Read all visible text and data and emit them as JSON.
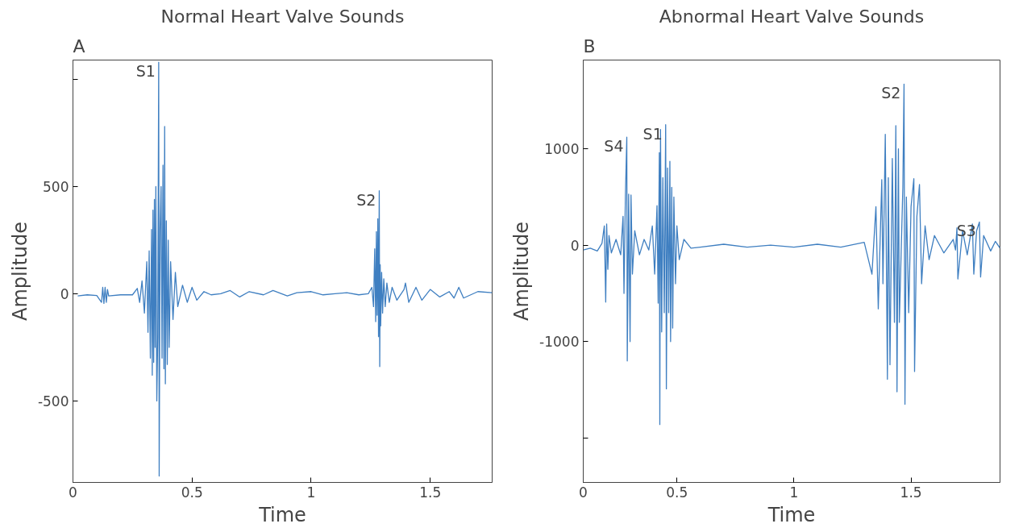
{
  "chart_data": [
    {
      "type": "line",
      "title": "Normal Heart Valve Sounds",
      "xlabel": "Time",
      "ylabel": "Amplitude",
      "annotations": [
        "A",
        {
          "text": "S1",
          "x": 0.36,
          "y": 1080
        },
        {
          "text": "S2",
          "x": 1.286,
          "y": 480
        }
      ],
      "xlim": [
        0,
        1.76
      ],
      "ylim": [
        -880,
        1090
      ],
      "xticks": [
        0,
        0.5,
        1,
        1.5
      ],
      "yticks": [
        -500,
        0,
        500,
        {
          "value": 1000,
          "label": null
        }
      ],
      "grid": false,
      "series": [
        {
          "color": "#3f7fc1",
          "x": [
            0.02,
            0.06,
            0.1,
            0.12,
            0.125,
            0.13,
            0.135,
            0.14,
            0.145,
            0.15,
            0.2,
            0.25,
            0.27,
            0.28,
            0.29,
            0.3,
            0.31,
            0.315,
            0.32,
            0.325,
            0.33,
            0.333,
            0.336,
            0.339,
            0.342,
            0.345,
            0.348,
            0.352,
            0.356,
            0.36,
            0.362,
            0.366,
            0.37,
            0.374,
            0.378,
            0.382,
            0.385,
            0.388,
            0.392,
            0.396,
            0.4,
            0.404,
            0.41,
            0.42,
            0.43,
            0.44,
            0.46,
            0.48,
            0.5,
            0.52,
            0.55,
            0.58,
            0.62,
            0.66,
            0.7,
            0.74,
            0.8,
            0.84,
            0.9,
            0.94,
            1.0,
            1.05,
            1.1,
            1.15,
            1.2,
            1.24,
            1.255,
            1.262,
            1.267,
            1.271,
            1.274,
            1.277,
            1.28,
            1.283,
            1.286,
            1.288,
            1.29,
            1.292,
            1.296,
            1.3,
            1.305,
            1.311,
            1.318,
            1.328,
            1.34,
            1.36,
            1.39,
            1.396,
            1.41,
            1.44,
            1.465,
            1.5,
            1.54,
            1.58,
            1.6,
            1.62,
            1.64,
            1.7,
            1.76
          ],
          "values": [
            -10,
            -5,
            -8,
            -40,
            30,
            -45,
            30,
            -40,
            20,
            -10,
            -5,
            -5,
            25,
            -40,
            60,
            -90,
            150,
            -180,
            200,
            -300,
            300,
            -380,
            390,
            -320,
            440,
            -250,
            500,
            -500,
            -200,
            1080,
            -850,
            300,
            500,
            -300,
            600,
            -350,
            780,
            -420,
            340,
            -330,
            250,
            -250,
            150,
            -120,
            100,
            -60,
            40,
            -40,
            30,
            -30,
            10,
            -5,
            0,
            15,
            -15,
            10,
            -5,
            15,
            -10,
            5,
            10,
            -5,
            0,
            5,
            -5,
            0,
            30,
            -60,
            210,
            -130,
            290,
            -100,
            350,
            -200,
            480,
            -340,
            135,
            -150,
            100,
            -90,
            70,
            -60,
            50,
            -40,
            30,
            -30,
            20,
            50,
            -40,
            30,
            -30,
            20,
            -15,
            10,
            -20,
            30,
            -20,
            10,
            5
          ]
        }
      ]
    },
    {
      "type": "line",
      "title": "Abnormal Heart Valve Sounds",
      "xlabel": "Time",
      "ylabel": "Amplitude",
      "annotations": [
        "B",
        {
          "text": "S4",
          "x": 0.286,
          "y": 1120
        },
        {
          "text": "S1",
          "x": 0.452,
          "y": 1250
        },
        {
          "text": "S2",
          "x": 1.47,
          "y": 1670
        },
        {
          "text": "S3",
          "x": 1.792,
          "y": 240
        }
      ],
      "xlim": [
        0.1,
        1.88
      ],
      "ylim": [
        -2460,
        1920
      ],
      "xticks": [
        {
          "value": 0.1,
          "label": "0"
        },
        0.5,
        1,
        1.5
      ],
      "yticks": [
        {
          "value": -2000,
          "label": null
        },
        -1000,
        0,
        1000
      ],
      "grid": false,
      "series": [
        {
          "color": "#3f7fc1",
          "x": [
            0.1,
            0.13,
            0.16,
            0.18,
            0.19,
            0.196,
            0.2,
            0.205,
            0.21,
            0.22,
            0.24,
            0.26,
            0.27,
            0.274,
            0.28,
            0.286,
            0.288,
            0.294,
            0.3,
            0.304,
            0.31,
            0.32,
            0.34,
            0.36,
            0.38,
            0.395,
            0.405,
            0.415,
            0.42,
            0.425,
            0.427,
            0.43,
            0.435,
            0.44,
            0.446,
            0.452,
            0.455,
            0.46,
            0.465,
            0.47,
            0.473,
            0.478,
            0.482,
            0.487,
            0.494,
            0.5,
            0.51,
            0.53,
            0.56,
            0.6,
            0.7,
            0.8,
            0.9,
            1.0,
            1.1,
            1.2,
            1.3,
            1.333,
            1.35,
            1.36,
            1.375,
            1.38,
            1.39,
            1.399,
            1.403,
            1.41,
            1.42,
            1.429,
            1.435,
            1.44,
            1.446,
            1.45,
            1.465,
            1.47,
            1.474,
            1.48,
            1.49,
            1.5,
            1.512,
            1.515,
            1.525,
            1.536,
            1.545,
            1.56,
            1.577,
            1.6,
            1.64,
            1.68,
            1.69,
            1.696,
            1.7,
            1.72,
            1.74,
            1.762,
            1.768,
            1.78,
            1.792,
            1.797,
            1.81,
            1.84,
            1.86,
            1.88
          ],
          "values": [
            -50,
            -30,
            -60,
            20,
            200,
            -590,
            220,
            -250,
            100,
            -80,
            60,
            -100,
            300,
            -500,
            500,
            1120,
            -1200,
            530,
            -1000,
            520,
            -300,
            150,
            -100,
            60,
            -50,
            200,
            -300,
            410,
            -600,
            960,
            -1860,
            1200,
            -900,
            700,
            -700,
            1250,
            -1490,
            800,
            -700,
            870,
            -1000,
            600,
            -860,
            500,
            -400,
            200,
            -150,
            60,
            -30,
            -20,
            10,
            -20,
            0,
            -20,
            10,
            -20,
            30,
            -300,
            400,
            -660,
            680,
            -400,
            1150,
            -1390,
            700,
            -1240,
            900,
            -800,
            1240,
            -1520,
            1000,
            -800,
            600,
            1670,
            -1650,
            500,
            -700,
            400,
            690,
            -1310,
            300,
            630,
            -400,
            200,
            -150,
            100,
            -80,
            60,
            -50,
            180,
            -350,
            150,
            -100,
            220,
            -300,
            150,
            240,
            -330,
            100,
            -60,
            40,
            -30
          ]
        }
      ]
    }
  ]
}
